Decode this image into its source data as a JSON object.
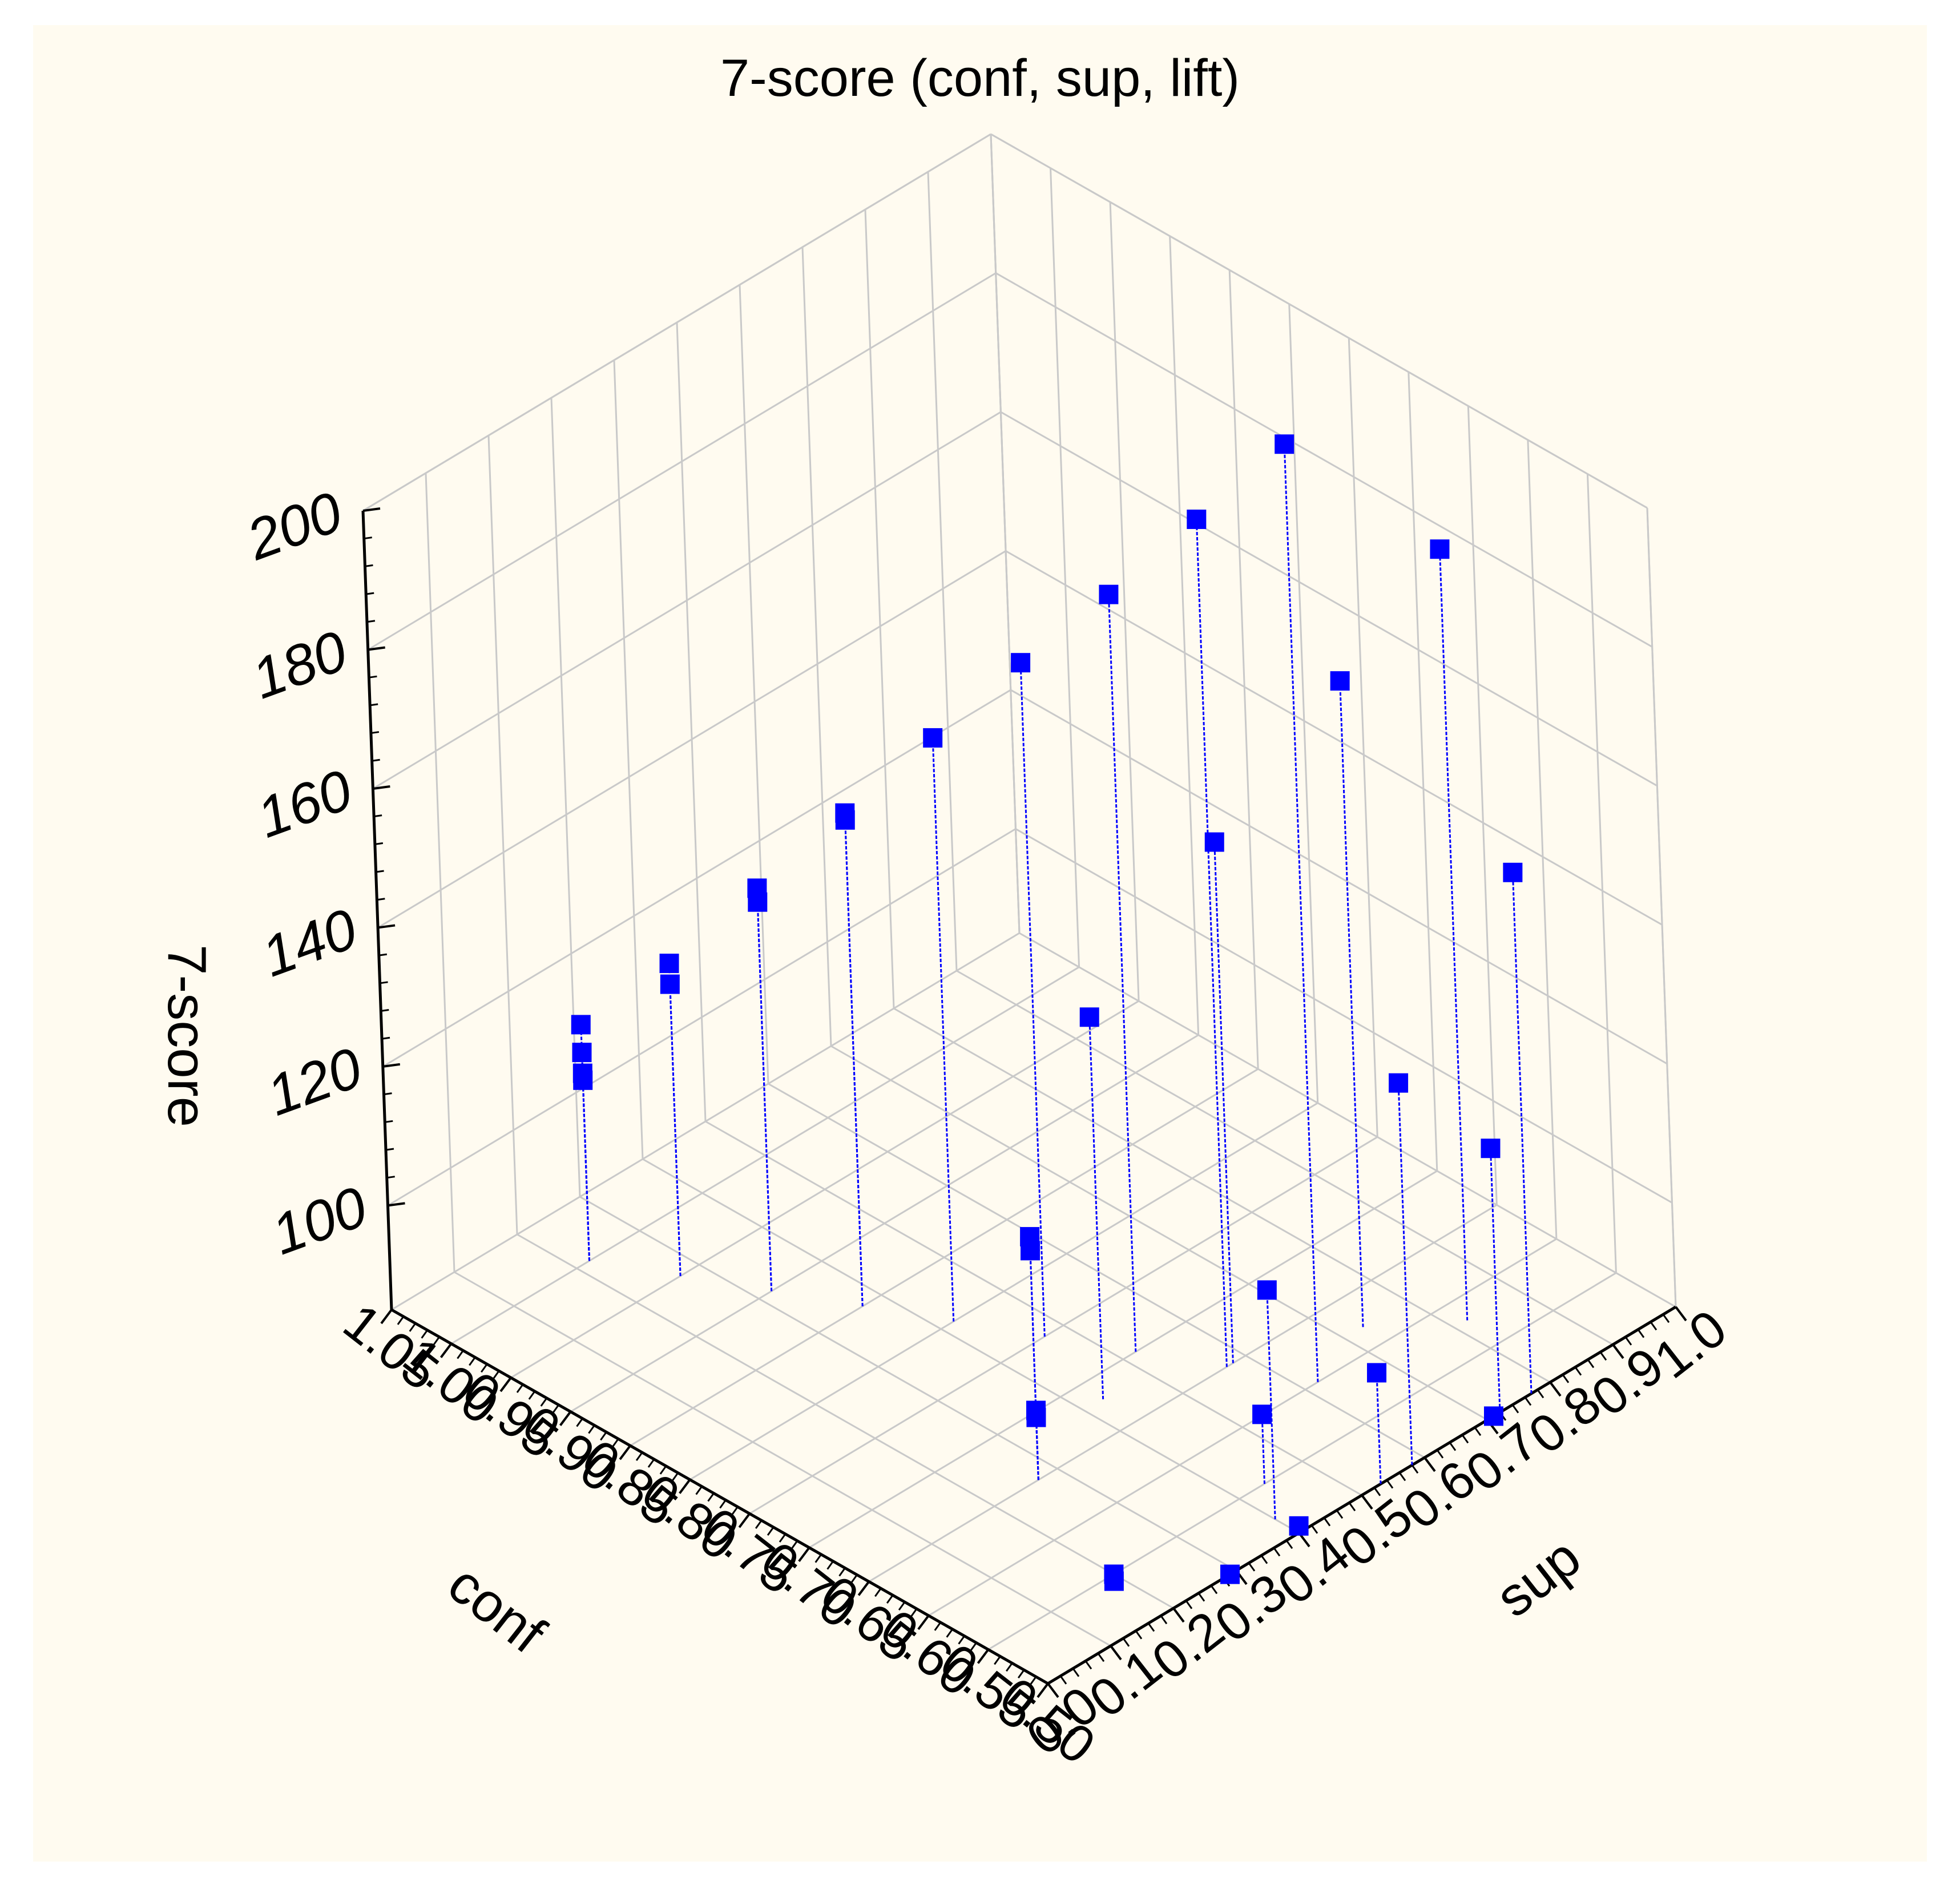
{
  "chart_data": {
    "type": "scatter",
    "subtype": "3d-scatter-with-drop-lines",
    "title": "7-score (conf, sup, lift)",
    "xlabel": "conf",
    "ylabel": "sup",
    "zlabel": "7-score",
    "x_ticks": [
      "1.05",
      "1.00",
      "0.95",
      "0.90",
      "0.85",
      "0.80",
      "0.75",
      "0.70",
      "0.65",
      "0.60",
      "0.55",
      "0.50"
    ],
    "y_ticks": [
      "0.0",
      "0.1",
      "0.2",
      "0.3",
      "0.4",
      "0.5",
      "0.6",
      "0.7",
      "0.8",
      "0.9",
      "1.0"
    ],
    "z_ticks": [
      "100",
      "120",
      "140",
      "160",
      "180",
      "200"
    ],
    "xlim": [
      0.5,
      1.05
    ],
    "ylim": [
      0.0,
      1.0
    ],
    "zlim": [
      85,
      200
    ],
    "grid": true,
    "marker_color": "#0000ff",
    "background_color": "#fffbf0",
    "points": [
      {
        "x": 1.0,
        "y": 0.22,
        "z": 119
      },
      {
        "x": 1.0,
        "y": 0.22,
        "z": 115
      },
      {
        "x": 1.0,
        "y": 0.22,
        "z": 112
      },
      {
        "x": 1.0,
        "y": 0.22,
        "z": 111
      },
      {
        "x": 0.95,
        "y": 0.27,
        "z": 130
      },
      {
        "x": 0.95,
        "y": 0.27,
        "z": 127
      },
      {
        "x": 0.9,
        "y": 0.32,
        "z": 143
      },
      {
        "x": 0.9,
        "y": 0.32,
        "z": 141
      },
      {
        "x": 0.85,
        "y": 0.37,
        "z": 156
      },
      {
        "x": 0.85,
        "y": 0.37,
        "z": 155
      },
      {
        "x": 0.8,
        "y": 0.42,
        "z": 169
      },
      {
        "x": 0.75,
        "y": 0.47,
        "z": 182
      },
      {
        "x": 0.7,
        "y": 0.52,
        "z": 194
      },
      {
        "x": 0.65,
        "y": 0.57,
        "z": 207
      },
      {
        "x": 0.6,
        "y": 0.62,
        "z": 220
      },
      {
        "x": 0.65,
        "y": 0.27,
        "z": 120
      },
      {
        "x": 0.65,
        "y": 0.27,
        "z": 118
      },
      {
        "x": 0.65,
        "y": 0.27,
        "z": 95
      },
      {
        "x": 0.65,
        "y": 0.27,
        "z": 94
      },
      {
        "x": 0.55,
        "y": 0.2,
        "z": 85
      },
      {
        "x": 0.55,
        "y": 0.2,
        "z": 84
      },
      {
        "x": 0.68,
        "y": 0.43,
        "z": 140
      },
      {
        "x": 0.65,
        "y": 0.58,
        "z": 160
      },
      {
        "x": 0.62,
        "y": 0.73,
        "z": 178
      },
      {
        "x": 0.58,
        "y": 0.82,
        "z": 196
      },
      {
        "x": 0.52,
        "y": 0.4,
        "z": 118
      },
      {
        "x": 0.55,
        "y": 0.44,
        "z": 95
      },
      {
        "x": 0.5,
        "y": 0.58,
        "z": 140
      },
      {
        "x": 0.5,
        "y": 0.29,
        "z": 85
      },
      {
        "x": 0.5,
        "y": 0.77,
        "z": 160
      },
      {
        "x": 0.5,
        "y": 0.53,
        "z": 101
      },
      {
        "x": 0.5,
        "y": 0.72,
        "z": 123
      },
      {
        "x": 0.5,
        "y": 0.4,
        "z": 86
      },
      {
        "x": 0.5,
        "y": 0.71,
        "z": 85
      }
    ]
  }
}
